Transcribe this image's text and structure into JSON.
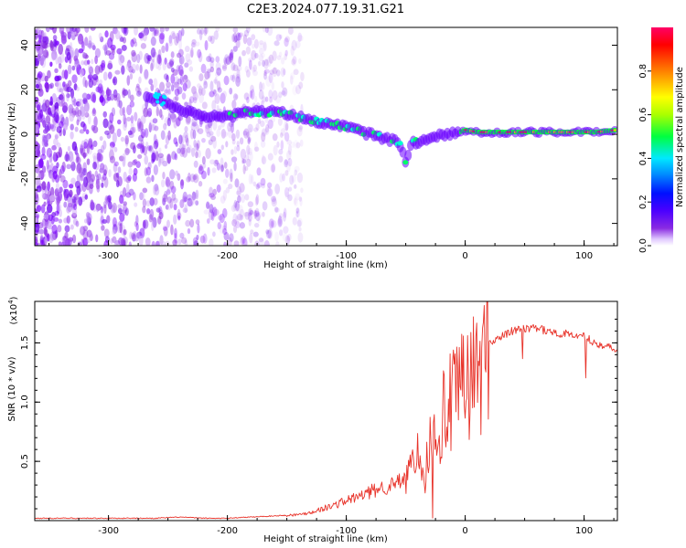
{
  "title": "C2E3.2024.077.19.31.G21",
  "chart_data": [
    {
      "type": "heatmap",
      "xlabel": "Height of straight line (km)",
      "ylabel": "Frequency (Hz)",
      "xlim": [
        -362,
        128
      ],
      "ylim": [
        -50,
        48
      ],
      "xticks": [
        "-300",
        "-200",
        "-100",
        "0",
        "100"
      ],
      "yticks": [
        "40",
        "20",
        "0",
        "-20",
        "-40"
      ],
      "grid": false,
      "colorbar": {
        "label": "Normalized spectral amplitude",
        "range": [
          0,
          1
        ],
        "ticks": [
          "0.0",
          "0.2",
          "0.4",
          "0.6",
          "0.8"
        ],
        "colors": [
          "#ffffff",
          "#b46cf0",
          "#5a00ff",
          "#0010ff",
          "#00a0ff",
          "#00ffff",
          "#00ff40",
          "#aaff00",
          "#ffff00",
          "#ff8000",
          "#ff0000",
          "#ff0080"
        ]
      },
      "ridge": {
        "x": [
          -265,
          -255,
          -240,
          -220,
          -200,
          -180,
          -160,
          -140,
          -120,
          -100,
          -80,
          -65,
          -55,
          -50,
          -45,
          -35,
          -25,
          -15,
          -5,
          0,
          10,
          30,
          60,
          90,
          110,
          128
        ],
        "y": [
          16,
          15,
          11,
          8,
          8,
          10,
          10,
          8,
          5,
          3,
          0,
          -2,
          -4,
          -12,
          -4,
          -3,
          -1,
          0,
          1,
          2,
          1,
          1,
          1,
          1,
          1,
          2
        ]
      }
    },
    {
      "type": "line",
      "xlabel": "Height of straight line (km)",
      "ylabel": "SNR (10 * v/v)",
      "yscale_label": "(x10",
      "yscale_exp": "4",
      "xlim": [
        -362,
        128
      ],
      "ylim": [
        0,
        1.85
      ],
      "xticks": [
        "-300",
        "-200",
        "-100",
        "0",
        "100"
      ],
      "yticks": [
        "0.5",
        "1.0",
        "1.5"
      ],
      "grid": false,
      "series": [
        {
          "color": "#e8332a",
          "x": [
            -362,
            -340,
            -320,
            -300,
            -280,
            -260,
            -240,
            -220,
            -200,
            -180,
            -160,
            -140,
            -130,
            -120,
            -110,
            -100,
            -90,
            -80,
            -70,
            -60,
            -50,
            -45,
            -40,
            -35,
            -30,
            -25,
            -20,
            -15,
            -10,
            -5,
            0,
            5,
            10,
            15,
            20,
            30,
            40,
            50,
            60,
            70,
            80,
            90,
            100,
            110,
            120,
            128
          ],
          "y": [
            0.02,
            0.02,
            0.02,
            0.02,
            0.02,
            0.02,
            0.03,
            0.02,
            0.02,
            0.03,
            0.04,
            0.05,
            0.07,
            0.1,
            0.13,
            0.17,
            0.2,
            0.24,
            0.28,
            0.3,
            0.35,
            0.5,
            0.45,
            0.35,
            0.62,
            0.72,
            0.85,
            0.95,
            1.0,
            1.08,
            1.15,
            1.2,
            1.25,
            1.35,
            1.5,
            1.55,
            1.6,
            1.62,
            1.62,
            1.6,
            1.58,
            1.57,
            1.55,
            1.5,
            1.47,
            1.42
          ]
        }
      ]
    }
  ]
}
